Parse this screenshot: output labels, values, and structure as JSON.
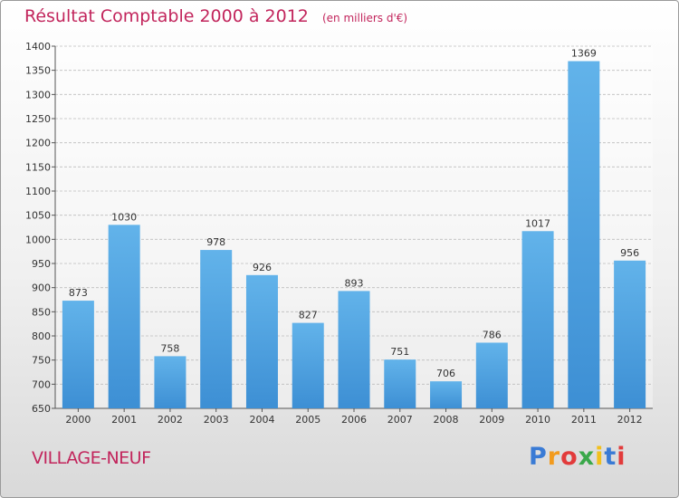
{
  "chart_data": {
    "type": "bar",
    "title": "Résultat Comptable 2000 à 2012",
    "subtitle": "(en milliers d'€)",
    "categories": [
      "2000",
      "2001",
      "2002",
      "2003",
      "2004",
      "2005",
      "2006",
      "2007",
      "2008",
      "2009",
      "2010",
      "2011",
      "2012"
    ],
    "values": [
      873,
      1030,
      758,
      978,
      926,
      827,
      893,
      751,
      706,
      786,
      1017,
      1369,
      956
    ],
    "ylim": [
      650,
      1400
    ],
    "ytick_step": 50,
    "xlabel": "",
    "ylabel": "",
    "grid": true,
    "colors": {
      "bar": "#3d8fd4",
      "bar_light": "#62b3ea",
      "accent": "#c2255c",
      "grid": "#bdbdbd"
    }
  },
  "commune": "VILLAGE-NEUF",
  "logo": {
    "letters": [
      "P",
      "r",
      "o",
      "x",
      "i",
      "t",
      "i"
    ],
    "colors": [
      "#3a7bd5",
      "#f29b1d",
      "#e23b3b",
      "#3aa84a",
      "#f2c01d",
      "#3a7bd5",
      "#e23b3b"
    ]
  }
}
